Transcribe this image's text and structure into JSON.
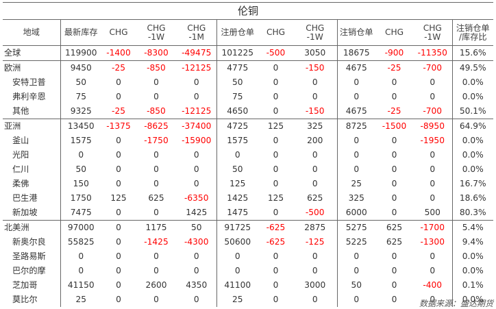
{
  "title": "伦铜",
  "headers": [
    "地域",
    "最新库存",
    "CHG",
    "CHG\n-1W",
    "CHG\n-1M",
    "注册仓单",
    "CHG",
    "CHG\n-1W",
    "注销仓单",
    "CHG",
    "CHG\n-1W",
    "注销仓单\n/库存比"
  ],
  "rows": [
    {
      "name": "全球",
      "indent": false,
      "band_start": true,
      "values": [
        "119900",
        "-1400",
        "-8300",
        "-49475",
        "101225",
        "-500",
        "3050",
        "18675",
        "-900",
        "-11350",
        "15.6%"
      ]
    },
    {
      "name": "欧洲",
      "indent": false,
      "band_start": true,
      "values": [
        "9450",
        "-25",
        "-850",
        "-12125",
        "4775",
        "0",
        "-150",
        "4675",
        "-25",
        "-700",
        "49.5%"
      ]
    },
    {
      "name": "安特卫普",
      "indent": true,
      "band_start": false,
      "values": [
        "50",
        "0",
        "0",
        "0",
        "50",
        "0",
        "0",
        "0",
        "0",
        "0",
        "0.0%"
      ]
    },
    {
      "name": "弗利辛恩",
      "indent": true,
      "band_start": false,
      "values": [
        "75",
        "0",
        "0",
        "0",
        "75",
        "0",
        "0",
        "0",
        "0",
        "0",
        "0.0%"
      ]
    },
    {
      "name": "其他",
      "indent": true,
      "band_start": false,
      "values": [
        "9325",
        "-25",
        "-850",
        "-12125",
        "4650",
        "0",
        "-150",
        "4675",
        "-25",
        "-700",
        "50.1%"
      ]
    },
    {
      "name": "亚洲",
      "indent": false,
      "band_start": true,
      "values": [
        "13450",
        "-1375",
        "-8625",
        "-37400",
        "4725",
        "125",
        "325",
        "8725",
        "-1500",
        "-8950",
        "64.9%"
      ]
    },
    {
      "name": "釜山",
      "indent": true,
      "band_start": false,
      "values": [
        "1575",
        "0",
        "-1750",
        "-15900",
        "1575",
        "0",
        "200",
        "0",
        "0",
        "-1950",
        "0.0%"
      ]
    },
    {
      "name": "光阳",
      "indent": true,
      "band_start": false,
      "values": [
        "0",
        "0",
        "0",
        "0",
        "0",
        "0",
        "0",
        "0",
        "0",
        "0",
        "0.0%"
      ]
    },
    {
      "name": "仁川",
      "indent": true,
      "band_start": false,
      "values": [
        "50",
        "0",
        "0",
        "0",
        "50",
        "0",
        "0",
        "0",
        "0",
        "0",
        "0.0%"
      ]
    },
    {
      "name": "柔佛",
      "indent": true,
      "band_start": false,
      "values": [
        "150",
        "0",
        "0",
        "0",
        "125",
        "0",
        "0",
        "25",
        "0",
        "0",
        "16.7%"
      ]
    },
    {
      "name": "巴生港",
      "indent": true,
      "band_start": false,
      "values": [
        "1750",
        "125",
        "625",
        "-6350",
        "1425",
        "125",
        "625",
        "325",
        "0",
        "0",
        "18.6%"
      ]
    },
    {
      "name": "新加坡",
      "indent": true,
      "band_start": false,
      "values": [
        "7475",
        "0",
        "0",
        "1425",
        "1475",
        "0",
        "-500",
        "6000",
        "0",
        "500",
        "80.3%"
      ]
    },
    {
      "name": "北美洲",
      "indent": false,
      "band_start": true,
      "values": [
        "97000",
        "0",
        "1175",
        "50",
        "91725",
        "-625",
        "2875",
        "5275",
        "625",
        "-1700",
        "5.4%"
      ]
    },
    {
      "name": "新奥尔良",
      "indent": true,
      "band_start": false,
      "values": [
        "55825",
        "0",
        "-1425",
        "-4300",
        "50600",
        "-625",
        "-125",
        "5225",
        "625",
        "-1300",
        "9.4%"
      ]
    },
    {
      "name": "圣路易斯",
      "indent": true,
      "band_start": false,
      "values": [
        "0",
        "0",
        "0",
        "0",
        "0",
        "0",
        "0",
        "0",
        "0",
        "0",
        "0.0%"
      ]
    },
    {
      "name": "巴尔的摩",
      "indent": true,
      "band_start": false,
      "values": [
        "0",
        "0",
        "0",
        "0",
        "0",
        "0",
        "0",
        "0",
        "0",
        "0",
        "0.0%"
      ]
    },
    {
      "name": "芝加哥",
      "indent": true,
      "band_start": false,
      "values": [
        "41150",
        "0",
        "2600",
        "4350",
        "41100",
        "0",
        "3000",
        "50",
        "0",
        "-400",
        "0.1%"
      ]
    },
    {
      "name": "莫比尔",
      "indent": true,
      "band_start": false,
      "values": [
        "25",
        "0",
        "0",
        "0",
        "25",
        "0",
        "0",
        "0",
        "0",
        "0",
        "0.0%"
      ]
    }
  ],
  "source": "数据来源：盛达期货",
  "colors": {
    "negative": "#ff0000",
    "text": "#333333",
    "rule": "#666666"
  }
}
